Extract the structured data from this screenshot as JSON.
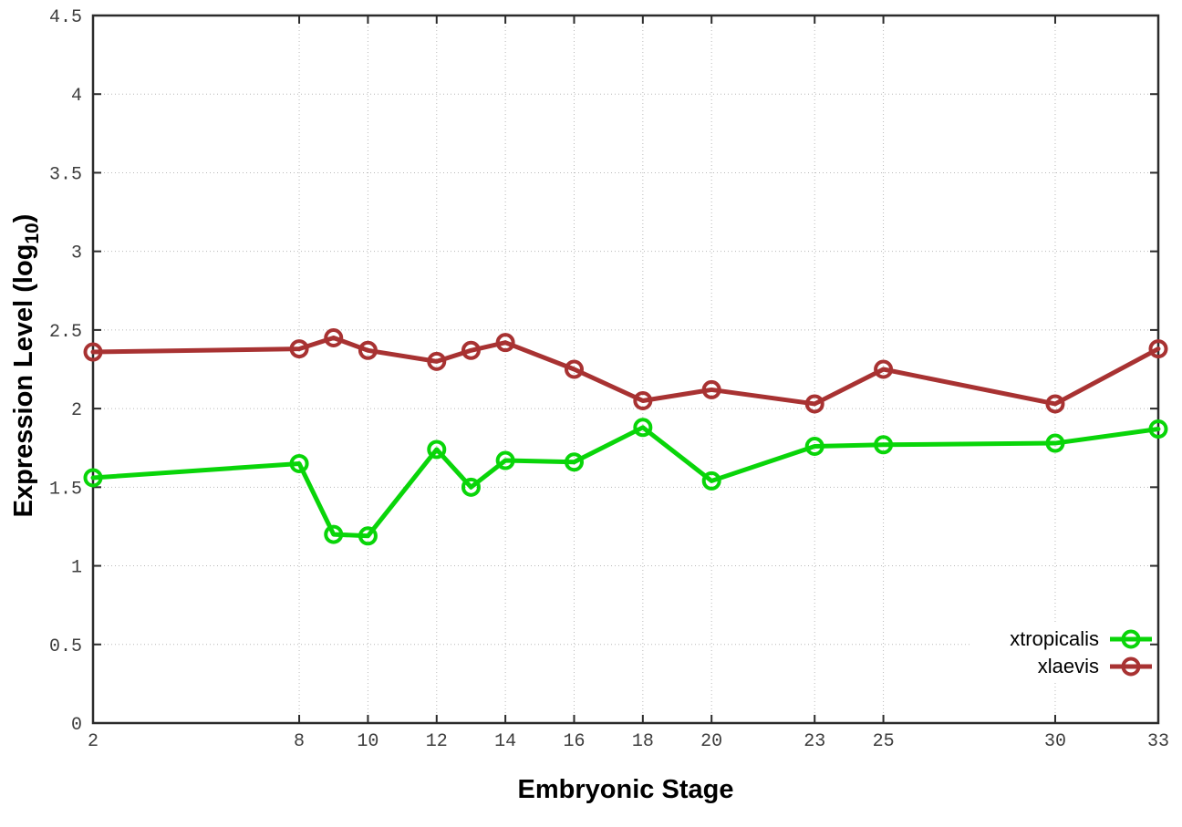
{
  "page": {
    "background": "#ffffff"
  },
  "chart_data": {
    "type": "line",
    "title": "",
    "xlabel": "Embryonic Stage",
    "ylabel": "Expression Level (log10)",
    "ylabel_parts": {
      "pre": "Expression Level (log",
      "sub": "10",
      "post": ")"
    },
    "xlim": [
      2,
      33
    ],
    "ylim": [
      0,
      4.5
    ],
    "grid": true,
    "marker": "open-circle",
    "legend_position": "inside-bottom-right",
    "x": [
      2,
      8,
      9,
      10,
      12,
      13,
      14,
      16,
      18,
      20,
      23,
      25,
      30,
      33
    ],
    "series": [
      {
        "name": "xtropicalis",
        "color": "#09d509",
        "values": [
          1.56,
          1.65,
          1.2,
          1.19,
          1.74,
          1.5,
          1.67,
          1.66,
          1.88,
          1.54,
          1.76,
          1.77,
          1.78,
          1.87
        ]
      },
      {
        "name": "xlaevis",
        "color": "#a83232",
        "values": [
          2.36,
          2.38,
          2.45,
          2.37,
          2.3,
          2.37,
          2.42,
          2.25,
          2.05,
          2.12,
          2.03,
          2.25,
          2.03,
          2.38
        ]
      }
    ],
    "xtick_values": [
      2,
      8,
      10,
      12,
      14,
      16,
      18,
      20,
      23,
      25,
      30,
      33
    ],
    "xtick_labels": [
      "2",
      "8",
      "10",
      "12",
      "14",
      "16",
      "18",
      "20",
      "23",
      "25",
      "30",
      "33"
    ],
    "ytick_values": [
      0,
      0.5,
      1,
      1.5,
      2,
      2.5,
      3,
      3.5,
      4,
      4.5
    ],
    "ytick_labels": [
      "0",
      "0.5",
      "1",
      "1.5",
      "2",
      "2.5",
      "3",
      "3.5",
      "4",
      "4.5"
    ],
    "colors": {
      "axis": "#2b2b2b",
      "grid": "#b8b8b8",
      "tick_text": "#3d3d3d"
    }
  }
}
